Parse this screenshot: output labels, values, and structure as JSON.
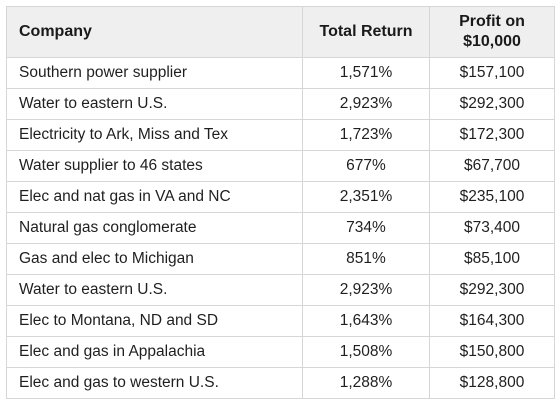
{
  "table": {
    "headers": {
      "company": "Company",
      "total_return": "Total Return",
      "profit_line1": "Profit on",
      "profit_line2": "$10,000"
    },
    "rows": [
      {
        "company": "Southern power supplier",
        "total_return": "1,571%",
        "profit": "$157,100"
      },
      {
        "company": "Water to eastern U.S.",
        "total_return": "2,923%",
        "profit": "$292,300"
      },
      {
        "company": "Electricity to Ark, Miss and Tex",
        "total_return": "1,723%",
        "profit": "$172,300"
      },
      {
        "company": "Water supplier to 46 states",
        "total_return": "677%",
        "profit": "$67,700"
      },
      {
        "company": "Elec and nat gas in VA and NC",
        "total_return": "2,351%",
        "profit": "$235,100"
      },
      {
        "company": "Natural gas conglomerate",
        "total_return": "734%",
        "profit": "$73,400"
      },
      {
        "company": "Gas and elec to Michigan",
        "total_return": "851%",
        "profit": "$85,100"
      },
      {
        "company": "Water to eastern U.S.",
        "total_return": "2,923%",
        "profit": "$292,300"
      },
      {
        "company": "Elec to Montana, ND and SD",
        "total_return": "1,643%",
        "profit": "$164,300"
      },
      {
        "company": "Elec and gas in Appalachia",
        "total_return": "1,508%",
        "profit": "$150,800"
      },
      {
        "company": "Elec and gas to western U.S.",
        "total_return": "1,288%",
        "profit": "$128,800"
      }
    ]
  }
}
